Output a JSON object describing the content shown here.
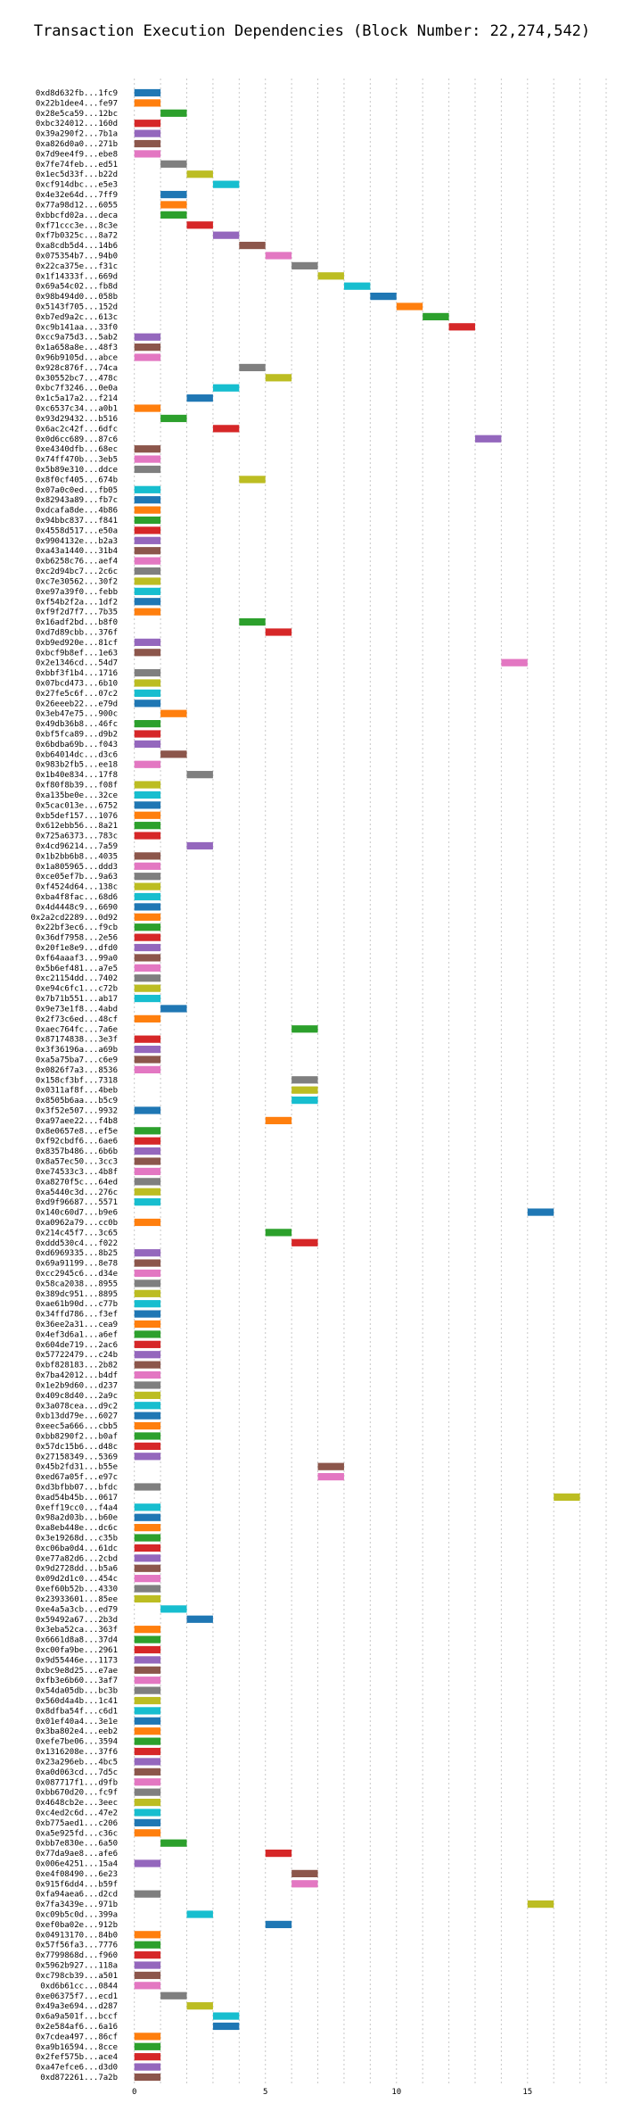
{
  "chart_data": {
    "type": "gantt",
    "title": "Transaction Execution Dependencies (Block Number: 22,274,542)",
    "xlabel": "",
    "ylabel": "",
    "xlim": [
      -0.5,
      18
    ],
    "xticks": [
      0,
      5,
      10,
      15
    ],
    "grid": "vertical dotted",
    "legend": "none",
    "palette": [
      "#1f77b4",
      "#ff7f0e",
      "#2ca02c",
      "#d62728",
      "#9467bd",
      "#8c564b",
      "#e377c2",
      "#7f7f7f",
      "#bcbd22",
      "#17becf"
    ],
    "rows": [
      {
        "tx": "0xd8d632fb...1fc9",
        "start": 0
      },
      {
        "tx": "0x22b1dee4...fe97",
        "start": 0
      },
      {
        "tx": "0x28e5ca59...12bc",
        "start": 1
      },
      {
        "tx": "0xbc324012...160d",
        "start": 0
      },
      {
        "tx": "0x39a290f2...7b1a",
        "start": 0
      },
      {
        "tx": "0xa826d0a0...271b",
        "start": 0
      },
      {
        "tx": "0x7d9ee4f9...ebe8",
        "start": 0
      },
      {
        "tx": "0x7fe74feb...ed51",
        "start": 1
      },
      {
        "tx": "0x1ec5d33f...b22d",
        "start": 2
      },
      {
        "tx": "0xcf914dbc...e5e3",
        "start": 3
      },
      {
        "tx": "0x4e32e64d...7ff9",
        "start": 1
      },
      {
        "tx": "0x77a98d12...6055",
        "start": 1
      },
      {
        "tx": "0xbbcfd02a...deca",
        "start": 1
      },
      {
        "tx": "0xf71ccc3e...8c3e",
        "start": 2
      },
      {
        "tx": "0xf7b0325c...8a72",
        "start": 3
      },
      {
        "tx": "0xa8cdb5d4...14b6",
        "start": 4
      },
      {
        "tx": "0x075354b7...94b0",
        "start": 5
      },
      {
        "tx": "0x22ca375e...f31c",
        "start": 6
      },
      {
        "tx": "0x1f14333f...669d",
        "start": 7
      },
      {
        "tx": "0x69a54c02...fb8d",
        "start": 8
      },
      {
        "tx": "0x98b494d0...058b",
        "start": 9
      },
      {
        "tx": "0x5143f705...152d",
        "start": 10
      },
      {
        "tx": "0xb7ed9a2c...613c",
        "start": 11
      },
      {
        "tx": "0xc9b141aa...33f0",
        "start": 12
      },
      {
        "tx": "0xcc9a75d3...5ab2",
        "start": 0
      },
      {
        "tx": "0x1a658a8e...48f3",
        "start": 0
      },
      {
        "tx": "0x96b9105d...abce",
        "start": 0
      },
      {
        "tx": "0x928c876f...74ca",
        "start": 4
      },
      {
        "tx": "0x30552bc7...478c",
        "start": 5
      },
      {
        "tx": "0xbc7f3246...0e0a",
        "start": 3
      },
      {
        "tx": "0x1c5a17a2...f214",
        "start": 2
      },
      {
        "tx": "0xc6537c34...a0b1",
        "start": 0
      },
      {
        "tx": "0x93d29432...b516",
        "start": 1
      },
      {
        "tx": "0x6ac2c42f...6dfc",
        "start": 3
      },
      {
        "tx": "0x0d6cc689...87c6",
        "start": 13
      },
      {
        "tx": "0xe4340dfb...68ec",
        "start": 0
      },
      {
        "tx": "0x74ff470b...3eb5",
        "start": 0
      },
      {
        "tx": "0x5b89e310...ddce",
        "start": 0
      },
      {
        "tx": "0x8f0cf405...674b",
        "start": 4
      },
      {
        "tx": "0x07a0c0ed...fb05",
        "start": 0
      },
      {
        "tx": "0x82943a89...fb7c",
        "start": 0
      },
      {
        "tx": "0xdcafa8de...4b86",
        "start": 0
      },
      {
        "tx": "0x94bbc837...f841",
        "start": 0
      },
      {
        "tx": "0x4558d517...e50a",
        "start": 0
      },
      {
        "tx": "0x9904132e...b2a3",
        "start": 0
      },
      {
        "tx": "0xa43a1440...31b4",
        "start": 0
      },
      {
        "tx": "0xb6258c76...aef4",
        "start": 0
      },
      {
        "tx": "0xc2d94bc7...2c6c",
        "start": 0
      },
      {
        "tx": "0xc7e30562...30f2",
        "start": 0
      },
      {
        "tx": "0xe97a39f0...febb",
        "start": 0
      },
      {
        "tx": "0xf54b2f2a...1df2",
        "start": 0
      },
      {
        "tx": "0xf9f2d7f7...7b35",
        "start": 0
      },
      {
        "tx": "0x16adf2bd...b8f0",
        "start": 4
      },
      {
        "tx": "0xd7d89cbb...376f",
        "start": 5
      },
      {
        "tx": "0xb9ed920e...81cf",
        "start": 0
      },
      {
        "tx": "0xbcf9b8ef...1e63",
        "start": 0
      },
      {
        "tx": "0x2e1346cd...54d7",
        "start": 14
      },
      {
        "tx": "0xbbf3f1b4...1716",
        "start": 0
      },
      {
        "tx": "0x07bcd473...6b10",
        "start": 0
      },
      {
        "tx": "0x27fe5c6f...07c2",
        "start": 0
      },
      {
        "tx": "0x26eeeb22...e79d",
        "start": 0
      },
      {
        "tx": "0x3eb47e75...900c",
        "start": 1
      },
      {
        "tx": "0x49db36b8...46fc",
        "start": 0
      },
      {
        "tx": "0xbf5fca89...d9b2",
        "start": 0
      },
      {
        "tx": "0x6bdba69b...f043",
        "start": 0
      },
      {
        "tx": "0xb64014dc...d3c6",
        "start": 1
      },
      {
        "tx": "0x983b2fb5...ee18",
        "start": 0
      },
      {
        "tx": "0x1b40e834...17f8",
        "start": 2
      },
      {
        "tx": "0xf80f8b39...f08f",
        "start": 0
      },
      {
        "tx": "0xa135be0e...32ce",
        "start": 0
      },
      {
        "tx": "0x5cac013e...6752",
        "start": 0
      },
      {
        "tx": "0xb5def157...1076",
        "start": 0
      },
      {
        "tx": "0x612ebb56...8a21",
        "start": 0
      },
      {
        "tx": "0x725a6373...783c",
        "start": 0
      },
      {
        "tx": "0x4cd96214...7a59",
        "start": 2
      },
      {
        "tx": "0x1b2bb6b8...4035",
        "start": 0
      },
      {
        "tx": "0x1a805965...ddd3",
        "start": 0
      },
      {
        "tx": "0xce05ef7b...9a63",
        "start": 0
      },
      {
        "tx": "0xf4524d64...138c",
        "start": 0
      },
      {
        "tx": "0xba4f8fac...68d6",
        "start": 0
      },
      {
        "tx": "0x4d4448c9...6690",
        "start": 0
      },
      {
        "tx": "0x2a2cd2289...0d92",
        "start": 0
      },
      {
        "tx": "0x22bf3ec6...f9cb",
        "start": 0
      },
      {
        "tx": "0x36df7958...2e56",
        "start": 0
      },
      {
        "tx": "0x20f1e8e9...dfd0",
        "start": 0
      },
      {
        "tx": "0xf64aaaf3...99a0",
        "start": 0
      },
      {
        "tx": "0x5b6ef481...a7e5",
        "start": 0
      },
      {
        "tx": "0xc21154dd...7402",
        "start": 0
      },
      {
        "tx": "0xe94c6fc1...c72b",
        "start": 0
      },
      {
        "tx": "0x7b71b551...ab17",
        "start": 0
      },
      {
        "tx": "0x9e73e1f8...4abd",
        "start": 1
      },
      {
        "tx": "0x2f73c6ed...48cf",
        "start": 0
      },
      {
        "tx": "0xaec764fc...7a6e",
        "start": 6
      },
      {
        "tx": "0x87174838...3e3f",
        "start": 0
      },
      {
        "tx": "0x3f36196a...a69b",
        "start": 0
      },
      {
        "tx": "0xa5a75ba7...c6e9",
        "start": 0
      },
      {
        "tx": "0x0826f7a3...8536",
        "start": 0
      },
      {
        "tx": "0x158cf3bf...7318",
        "start": 6
      },
      {
        "tx": "0x0311af8f...4beb",
        "start": 6
      },
      {
        "tx": "0x8505b6aa...b5c9",
        "start": 6
      },
      {
        "tx": "0x3f52e507...9932",
        "start": 0
      },
      {
        "tx": "0xa97aee22...f4b8",
        "start": 5
      },
      {
        "tx": "0x8e0657e8...ef5e",
        "start": 0
      },
      {
        "tx": "0xf92cbdf6...6ae6",
        "start": 0
      },
      {
        "tx": "0x8357b486...6b6b",
        "start": 0
      },
      {
        "tx": "0x8a57ec50...3cc3",
        "start": 0
      },
      {
        "tx": "0xe74533c3...4b8f",
        "start": 0
      },
      {
        "tx": "0xa8270f5c...64ed",
        "start": 0
      },
      {
        "tx": "0xa5440c3d...276c",
        "start": 0
      },
      {
        "tx": "0xd9f96687...5571",
        "start": 0
      },
      {
        "tx": "0x140c60d7...b9e6",
        "start": 15
      },
      {
        "tx": "0xa0962a79...cc0b",
        "start": 0
      },
      {
        "tx": "0x214c45f7...3c65",
        "start": 5
      },
      {
        "tx": "0xddd530c4...f022",
        "start": 6
      },
      {
        "tx": "0xd6969335...8b25",
        "start": 0
      },
      {
        "tx": "0x69a91199...8e78",
        "start": 0
      },
      {
        "tx": "0xcc2945c6...d34e",
        "start": 0
      },
      {
        "tx": "0x58ca2038...8955",
        "start": 0
      },
      {
        "tx": "0x389dc951...8895",
        "start": 0
      },
      {
        "tx": "0xae61b90d...c77b",
        "start": 0
      },
      {
        "tx": "0x34ffd786...f3ef",
        "start": 0
      },
      {
        "tx": "0x36ee2a31...cea9",
        "start": 0
      },
      {
        "tx": "0x4ef3d6a1...a6ef",
        "start": 0
      },
      {
        "tx": "0x604de719...2ac6",
        "start": 0
      },
      {
        "tx": "0x57722479...c24b",
        "start": 0
      },
      {
        "tx": "0xbf828183...2b82",
        "start": 0
      },
      {
        "tx": "0x7ba42012...b4df",
        "start": 0
      },
      {
        "tx": "0x1e2b9d60...d237",
        "start": 0
      },
      {
        "tx": "0x409c8d40...2a9c",
        "start": 0
      },
      {
        "tx": "0x3a078cea...d9c2",
        "start": 0
      },
      {
        "tx": "0xb13dd79e...6027",
        "start": 0
      },
      {
        "tx": "0xeec5a666...cbb5",
        "start": 0
      },
      {
        "tx": "0xbb8290f2...b0af",
        "start": 0
      },
      {
        "tx": "0x57dc15b6...d48c",
        "start": 0
      },
      {
        "tx": "0x27158349...5369",
        "start": 0
      },
      {
        "tx": "0x45b2fd31...b55e",
        "start": 7
      },
      {
        "tx": "0xed67a05f...e97c",
        "start": 7
      },
      {
        "tx": "0xd3bfbb07...bfdc",
        "start": 0
      },
      {
        "tx": "0xad54b45b...0617",
        "start": 16
      },
      {
        "tx": "0xeff19cc0...f4a4",
        "start": 0
      },
      {
        "tx": "0x98a2d03b...b60e",
        "start": 0
      },
      {
        "tx": "0xa8eb448e...dc6c",
        "start": 0
      },
      {
        "tx": "0x3e19268d...c35b",
        "start": 0
      },
      {
        "tx": "0xc06ba0d4...61dc",
        "start": 0
      },
      {
        "tx": "0xe77a82d6...2cbd",
        "start": 0
      },
      {
        "tx": "0x9d2728dd...b5a6",
        "start": 0
      },
      {
        "tx": "0x09d2d1c0...454c",
        "start": 0
      },
      {
        "tx": "0xef60b52b...4330",
        "start": 0
      },
      {
        "tx": "0x23933601...85ee",
        "start": 0
      },
      {
        "tx": "0xe4a5a3cb...ed79",
        "start": 1
      },
      {
        "tx": "0x59492a67...2b3d",
        "start": 2
      },
      {
        "tx": "0x3eba52ca...363f",
        "start": 0
      },
      {
        "tx": "0x6661d8a8...37d4",
        "start": 0
      },
      {
        "tx": "0xc00fa9be...2961",
        "start": 0
      },
      {
        "tx": "0x9d55446e...1173",
        "start": 0
      },
      {
        "tx": "0xbc9e8d25...e7ae",
        "start": 0
      },
      {
        "tx": "0xfb3e6b60...3af7",
        "start": 0
      },
      {
        "tx": "0x54da05db...bc3b",
        "start": 0
      },
      {
        "tx": "0x560d4a4b...1c41",
        "start": 0
      },
      {
        "tx": "0x8dfba54f...c6d1",
        "start": 0
      },
      {
        "tx": "0x01ef40a4...3e1e",
        "start": 0
      },
      {
        "tx": "0x3ba802e4...eeb2",
        "start": 0
      },
      {
        "tx": "0xefe7be06...3594",
        "start": 0
      },
      {
        "tx": "0x1316208e...37f6",
        "start": 0
      },
      {
        "tx": "0x23a296eb...4bc5",
        "start": 0
      },
      {
        "tx": "0xa0d063cd...7d5c",
        "start": 0
      },
      {
        "tx": "0x087717f1...d9fb",
        "start": 0
      },
      {
        "tx": "0xbb670d20...fc9f",
        "start": 0
      },
      {
        "tx": "0x4648cb2e...3eec",
        "start": 0
      },
      {
        "tx": "0xc4ed2c6d...47e2",
        "start": 0
      },
      {
        "tx": "0xb775aed1...c206",
        "start": 0
      },
      {
        "tx": "0xa5e925fd...c36c",
        "start": 0
      },
      {
        "tx": "0xbb7e830e...6a50",
        "start": 1
      },
      {
        "tx": "0x77da9ae8...afe6",
        "start": 5
      },
      {
        "tx": "0x006e4251...15a4",
        "start": 0
      },
      {
        "tx": "0xe4f08490...6e23",
        "start": 6
      },
      {
        "tx": "0x915f6dd4...b59f",
        "start": 6
      },
      {
        "tx": "0xfa94aea6...d2cd",
        "start": 0
      },
      {
        "tx": "0x7fa3439e...971b",
        "start": 15
      },
      {
        "tx": "0xc09b5c0d...399a",
        "start": 2
      },
      {
        "tx": "0xef0ba02e...912b",
        "start": 5
      },
      {
        "tx": "0x04913170...84b0",
        "start": 0
      },
      {
        "tx": "0x57f56fa3...7776",
        "start": 0
      },
      {
        "tx": "0x7799868d...f960",
        "start": 0
      },
      {
        "tx": "0x5962b927...118a",
        "start": 0
      },
      {
        "tx": "0xc798cb39...a501",
        "start": 0
      },
      {
        "tx": "0xd6b61cc...0844",
        "start": 0
      },
      {
        "tx": "0xe06375f7...ecd1",
        "start": 1
      },
      {
        "tx": "0x49a3e694...d287",
        "start": 2
      },
      {
        "tx": "0x6a9a501f...bccf",
        "start": 3
      },
      {
        "tx": "0x2e584af6...6a16",
        "start": 3
      },
      {
        "tx": "0x7cdea497...86cf",
        "start": 0
      },
      {
        "tx": "0xa9b16594...8cce",
        "start": 0
      },
      {
        "tx": "0x2fef575b...ace4",
        "start": 0
      },
      {
        "tx": "0xa47efce6...d3d0",
        "start": 0
      },
      {
        "tx": "0xd872261...7a2b",
        "start": 0
      }
    ]
  }
}
